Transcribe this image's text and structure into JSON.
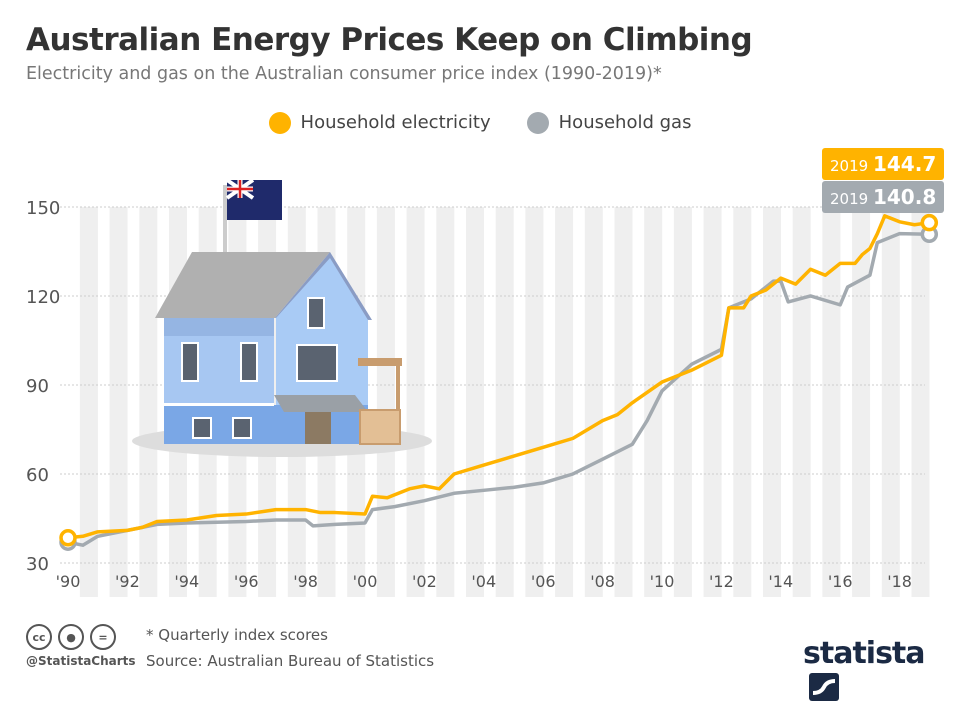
{
  "title": "Australian Energy Prices Keep on Climbing",
  "subtitle": "Electricity and gas on the Australian consumer price index (1990-2019)*",
  "footer": {
    "note": "* Quarterly index scores",
    "source": "Source: Australian Bureau of Statistics",
    "handle": "@StatistaCharts",
    "logo": "statista",
    "license_icons": [
      "cc-icon",
      "person-icon",
      "equals-icon"
    ]
  },
  "chart_data": {
    "type": "line",
    "title": "Australian Energy Prices Keep on Climbing",
    "ylim": [
      30,
      150
    ],
    "yticks": [
      30,
      60,
      90,
      120,
      150
    ],
    "xlim": [
      1990,
      2019
    ],
    "xticks": [
      1990,
      1992,
      1994,
      1996,
      1998,
      2000,
      2002,
      2004,
      2006,
      2008,
      2010,
      2012,
      2014,
      2016,
      2018
    ],
    "xtick_labels": [
      "'90",
      "'92",
      "'94",
      "'96",
      "'98",
      "'00",
      "'02",
      "'04",
      "'06",
      "'08",
      "'10",
      "'12",
      "'14",
      "'16",
      "'18"
    ],
    "grid": true,
    "legend": "top-center",
    "series": [
      {
        "name": "Household electricity",
        "color": "#ffb300",
        "x": [
          1990,
          1990.5,
          1991,
          1992,
          1992.5,
          1993,
          1994,
          1995,
          1996,
          1997,
          1998,
          1998.5,
          1999,
          2000,
          2000.25,
          2000.75,
          2001,
          2001.5,
          2002,
          2002.5,
          2003,
          2004,
          2005,
          2006,
          2007,
          2008,
          2008.5,
          2009,
          2010,
          2011,
          2012,
          2012.25,
          2012.75,
          2013,
          2013.5,
          2014,
          2014.5,
          2015,
          2015.5,
          2016,
          2016.5,
          2016.75,
          2017,
          2017.25,
          2017.5,
          2018,
          2018.5,
          2019
        ],
        "y": [
          38.5,
          39,
          40.5,
          41,
          42,
          44,
          44.5,
          46,
          46.5,
          48,
          48,
          47,
          47,
          46.5,
          52.5,
          52,
          53,
          55,
          56,
          55,
          60,
          63,
          66,
          69,
          72,
          78,
          80,
          84,
          91,
          95,
          100,
          116,
          116,
          120,
          122,
          126,
          124,
          129,
          127,
          131,
          131,
          134,
          136,
          141,
          147,
          145,
          144,
          144.7
        ]
      },
      {
        "name": "Household gas",
        "color": "#a3aab0",
        "x": [
          1990,
          1990.5,
          1991,
          1992,
          1993,
          1994,
          1996,
          1997,
          1998,
          1998.25,
          1999,
          2000,
          2000.25,
          2001,
          2002,
          2003,
          2004,
          2005,
          2006,
          2007,
          2008,
          2009,
          2009.5,
          2010,
          2011,
          2012,
          2012.25,
          2013,
          2013.75,
          2014,
          2014.25,
          2015,
          2016,
          2016.25,
          2017,
          2017.25,
          2018,
          2019
        ],
        "y": [
          37,
          36,
          39,
          41,
          43,
          43.5,
          44,
          44.5,
          44.5,
          42.5,
          43,
          43.5,
          48,
          49,
          51,
          53.5,
          54.5,
          55.5,
          57,
          60,
          65,
          70,
          78,
          88,
          97,
          102,
          116,
          119,
          125,
          125,
          118,
          120,
          117,
          123,
          127,
          138,
          141,
          140.8
        ]
      }
    ],
    "annotations": [
      {
        "series": "Household electricity",
        "year": "2019",
        "value": "144.7"
      },
      {
        "series": "Household gas",
        "year": "2019",
        "value": "140.8"
      }
    ]
  }
}
